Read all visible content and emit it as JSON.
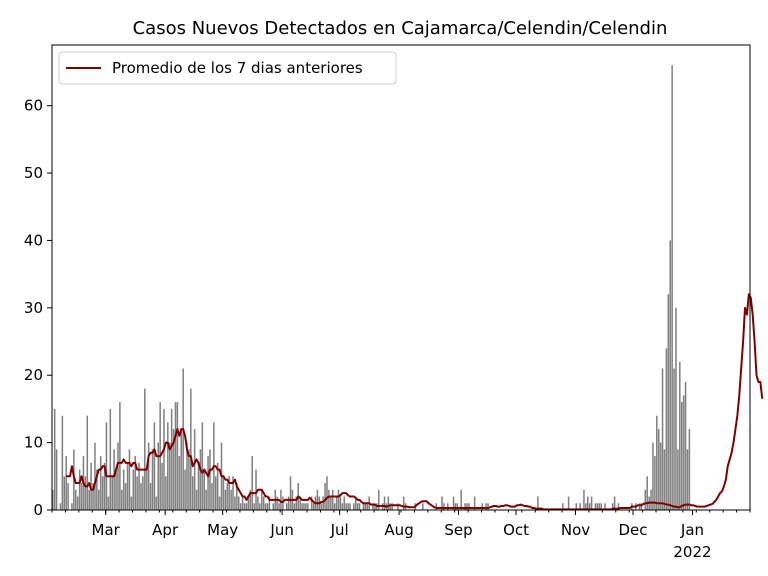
{
  "chart_data": {
    "type": "bar",
    "title": "Casos Nuevos Detectados en Cajamarca/Celendin/Celendin",
    "xlabel": "",
    "ylabel": "",
    "ylim": [
      0,
      69
    ],
    "yticks": [
      0,
      10,
      20,
      30,
      40,
      50,
      60
    ],
    "grid": false,
    "legend_position": "top-left",
    "x_start": "2021-02-01",
    "x_end": "2022-01-31",
    "xticks": [
      {
        "date": "2021-03-01",
        "label": "Mar"
      },
      {
        "date": "2021-04-01",
        "label": "Apr"
      },
      {
        "date": "2021-05-01",
        "label": "May"
      },
      {
        "date": "2021-06-01",
        "label": "Jun"
      },
      {
        "date": "2021-07-01",
        "label": "Jul"
      },
      {
        "date": "2021-08-01",
        "label": "Aug"
      },
      {
        "date": "2021-09-01",
        "label": "Sep"
      },
      {
        "date": "2021-10-01",
        "label": "Oct"
      },
      {
        "date": "2021-11-01",
        "label": "Nov"
      },
      {
        "date": "2021-12-01",
        "label": "Dec"
      },
      {
        "date": "2022-01-01",
        "label": "Jan"
      }
    ],
    "year_label": "2022",
    "bar_color": "#808080",
    "line_color": "#800000",
    "series": [
      {
        "type": "bar",
        "start": "2021-02-01",
        "values": [
          3,
          15,
          9,
          0,
          1,
          14,
          5,
          8,
          4,
          0,
          1,
          9,
          3,
          2,
          6,
          4,
          8,
          5,
          14,
          3,
          7,
          4,
          10,
          6,
          3,
          8,
          5,
          7,
          13,
          2,
          15,
          5,
          9,
          6,
          10,
          16,
          3,
          6,
          4,
          7,
          9,
          2,
          6,
          8,
          5,
          7,
          4,
          5,
          18,
          6,
          10,
          4,
          9,
          13,
          2,
          10,
          16,
          7,
          15,
          5,
          13,
          10,
          15,
          12,
          16,
          16,
          8,
          12,
          21,
          6,
          10,
          9,
          18,
          5,
          12,
          3,
          7,
          9,
          13,
          6,
          3,
          8,
          9,
          4,
          13,
          5,
          7,
          2,
          10,
          5,
          3,
          4,
          5,
          3,
          5,
          2,
          4,
          2,
          1,
          2,
          1,
          1,
          2,
          3,
          8,
          1,
          6,
          2,
          1,
          3,
          2,
          1,
          1,
          2,
          0,
          1,
          3,
          2,
          1,
          3,
          2,
          0,
          1,
          2,
          5,
          3,
          1,
          2,
          4,
          2,
          1,
          1,
          1,
          1,
          0,
          2,
          1,
          2,
          3,
          2,
          1,
          2,
          4,
          5,
          3,
          2,
          3,
          1,
          2,
          3,
          2,
          1,
          2,
          1,
          1,
          1,
          0,
          1,
          2,
          1,
          1,
          0,
          1,
          1,
          1,
          2,
          0,
          1,
          1,
          1,
          3,
          0,
          1,
          2,
          1,
          2,
          1,
          1,
          0,
          0,
          1,
          0,
          0,
          2,
          1,
          0,
          0,
          0,
          0,
          1,
          0,
          0,
          0,
          1,
          0,
          0,
          0,
          0,
          0,
          0,
          1,
          0,
          0,
          2,
          1,
          0,
          1,
          0,
          0,
          2,
          1,
          1,
          0,
          3,
          0,
          1,
          1,
          1,
          0,
          0,
          2,
          0,
          0,
          0,
          1,
          0,
          1,
          1,
          0,
          0,
          0,
          0,
          0,
          0,
          0,
          0,
          0,
          0,
          0,
          0,
          0,
          0,
          0,
          0,
          0,
          0,
          0,
          0,
          0,
          0,
          0,
          0,
          0,
          2,
          0,
          0,
          0,
          0,
          0,
          0,
          0,
          0,
          0,
          0,
          0,
          0,
          1,
          0,
          0,
          2,
          0,
          0,
          0,
          1,
          0,
          1,
          0,
          3,
          1,
          2,
          1,
          2,
          0,
          1,
          1,
          1,
          1,
          0,
          1,
          0,
          0,
          0,
          1,
          2,
          0,
          1,
          0,
          0,
          0,
          0,
          0,
          0,
          1,
          0,
          1,
          0,
          1,
          1,
          0,
          3,
          5,
          2,
          3,
          10,
          8,
          14,
          12,
          10,
          21,
          9,
          24,
          32,
          40,
          66,
          21,
          30,
          9,
          22,
          16,
          17,
          19,
          9,
          12
        ]
      },
      {
        "type": "line",
        "name": "Promedio de los 7 dias anteriores",
        "start": "2021-02-08",
        "values": [
          5,
          5,
          5,
          6.5,
          5,
          4,
          4,
          4,
          5,
          4,
          3.5,
          3.5,
          4,
          3,
          3,
          4,
          5,
          6,
          6,
          6.5,
          6.5,
          5,
          5,
          5,
          5,
          5,
          6,
          7,
          7,
          7,
          7.5,
          7,
          7,
          7,
          6.5,
          7,
          7,
          6,
          6,
          6,
          6,
          6,
          6,
          8,
          8.5,
          8.5,
          9,
          8,
          8,
          8,
          8.5,
          9,
          10,
          10,
          9,
          9.5,
          10,
          11,
          12,
          11,
          12,
          12,
          11,
          9,
          8,
          8,
          6.5,
          7,
          7.5,
          7,
          6,
          5.5,
          6,
          5.5,
          5,
          6,
          6,
          6.5,
          6.5,
          6,
          6,
          5,
          5,
          4.5,
          4.5,
          4,
          4,
          4,
          4.5,
          3.5,
          3,
          2.5,
          2,
          2,
          1.5,
          2,
          2.5,
          2.5,
          2.5,
          2.5,
          3,
          3,
          3,
          2.5,
          2,
          2,
          1.5,
          1.5,
          1.5,
          1.5,
          1.5,
          1.5,
          1.2,
          1.2,
          1.5,
          1.5,
          1.5,
          1.5,
          1.5,
          1.5,
          1.5,
          2,
          1.8,
          1.5,
          1.5,
          1.5,
          1.5,
          1.8,
          1.5,
          1.2,
          1,
          1,
          1,
          1.2,
          1.2,
          1.5,
          1.8,
          2,
          2,
          2,
          2,
          2,
          2,
          2.2,
          2.5,
          2.5,
          2.5,
          2.2,
          2,
          2,
          2,
          1.8,
          1.5,
          1.5,
          1.2,
          1,
          1,
          1,
          1,
          0.8,
          0.8,
          0.8,
          0.6,
          0.6,
          0.6,
          0.6,
          0.6,
          0.5,
          0.6,
          0.7,
          0.7,
          0.7,
          0.7,
          0.7,
          0.7,
          0.6,
          0.5,
          0.5,
          0.5,
          0.4,
          0.4,
          0.4,
          0.5,
          0.8,
          1,
          1.2,
          1.3,
          1.3,
          1.3,
          1,
          0.8,
          0.6,
          0.4,
          0.3,
          0.3,
          0.3,
          0.3,
          0.3,
          0.3,
          0.3,
          0.3,
          0.3,
          0.3,
          0.3,
          0.3,
          0.3,
          0.3,
          0.3,
          0.3,
          0.3,
          0.3,
          0.3,
          0.3,
          0.3,
          0.3,
          0.3,
          0.3,
          0.3,
          0.3,
          0.3,
          0.3,
          0.4,
          0.5,
          0.6,
          0.6,
          0.5,
          0.5,
          0.6,
          0.6,
          0.7,
          0.7,
          0.6,
          0.5,
          0.5,
          0.5,
          0.7,
          0.7,
          0.8,
          0.7,
          0.6,
          0.6,
          0.5,
          0.5,
          0.3,
          0.3,
          0.2,
          0.2,
          0.2,
          0.2,
          0.1,
          0.1,
          0.1,
          0.1,
          0.1,
          0.1,
          0.1,
          0.1,
          0.1,
          0.1,
          0.1,
          0.1,
          0.1,
          0.1,
          0.1,
          0.1,
          0.1,
          0.1,
          0.1,
          0.1,
          0.1,
          0.1,
          0.1,
          0.1,
          0.1,
          0.1,
          0.1,
          0.1,
          0.1,
          0.1,
          0.1,
          0.1,
          0.1,
          0.1,
          0.1,
          0.1,
          0.2,
          0.2,
          0.2,
          0.2,
          0.3,
          0.3,
          0.3,
          0.3,
          0.3,
          0.3,
          0.5,
          0.5,
          0.5,
          0.7,
          0.7,
          0.7,
          0.9,
          1,
          1,
          1.1,
          1.1,
          1.1,
          1.1,
          1,
          1,
          1,
          1,
          0.9,
          0.8,
          0.8,
          0.7,
          0.6,
          0.5,
          0.5,
          0.4,
          0.4,
          0.6,
          0.7,
          0.8,
          0.8,
          0.8,
          0.7,
          0.7,
          0.6,
          0.5,
          0.5,
          0.5,
          0.5,
          0.5,
          0.6,
          0.7,
          0.8,
          0.9,
          1.2,
          1.5,
          2,
          2.5,
          2.8,
          3.5,
          4.5,
          6.5,
          7.5,
          8.5,
          10,
          12,
          14,
          17,
          21,
          25,
          30,
          29,
          32,
          31.5,
          29,
          25,
          20,
          19,
          19,
          16.5
        ]
      }
    ]
  }
}
